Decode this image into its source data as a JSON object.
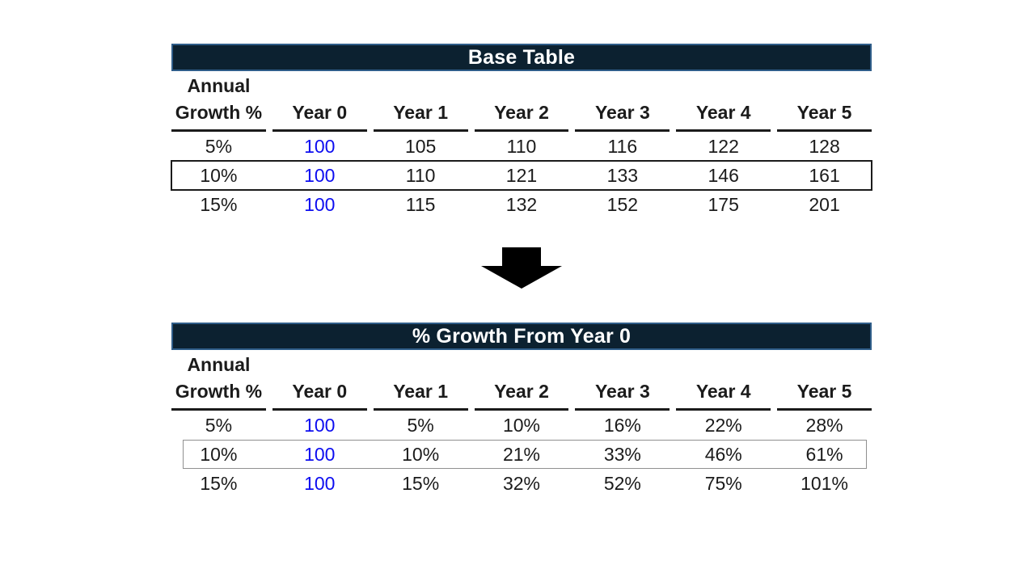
{
  "page": {
    "background": "#ffffff"
  },
  "colors": {
    "title_bar_fill": "#0c2130",
    "title_bar_border": "#2f5d89",
    "title_text": "#ffffff",
    "body_text": "#1b1b1b",
    "year0_value_blue": "#0d0df0",
    "highlight_box_dark": "#1b1b1b",
    "highlight_box_gray": "#909090",
    "arrow_fill": "#000000"
  },
  "arrow": {
    "icon": "down-arrow-icon"
  },
  "tables": [
    {
      "title": "Base Table",
      "row_header": {
        "line1": "Annual",
        "line2": "Growth %"
      },
      "columns": [
        "Year 0",
        "Year 1",
        "Year 2",
        "Year 3",
        "Year 4",
        "Year 5"
      ],
      "rows": [
        {
          "label": "5%",
          "values": [
            "100",
            "105",
            "110",
            "116",
            "122",
            "128"
          ],
          "highlighted": false
        },
        {
          "label": "10%",
          "values": [
            "100",
            "110",
            "121",
            "133",
            "146",
            "161"
          ],
          "highlighted": true
        },
        {
          "label": "15%",
          "values": [
            "100",
            "115",
            "132",
            "152",
            "175",
            "201"
          ],
          "highlighted": false
        }
      ]
    },
    {
      "title": "% Growth From Year 0",
      "row_header": {
        "line1": "Annual",
        "line2": "Growth %"
      },
      "columns": [
        "Year 0",
        "Year 1",
        "Year 2",
        "Year 3",
        "Year 4",
        "Year 5"
      ],
      "rows": [
        {
          "label": "5%",
          "values": [
            "100",
            "5%",
            "10%",
            "16%",
            "22%",
            "28%"
          ],
          "highlighted": false
        },
        {
          "label": "10%",
          "values": [
            "100",
            "10%",
            "21%",
            "33%",
            "46%",
            "61%"
          ],
          "highlighted": true
        },
        {
          "label": "15%",
          "values": [
            "100",
            "15%",
            "32%",
            "52%",
            "75%",
            "101%"
          ],
          "highlighted": false
        }
      ]
    }
  ]
}
